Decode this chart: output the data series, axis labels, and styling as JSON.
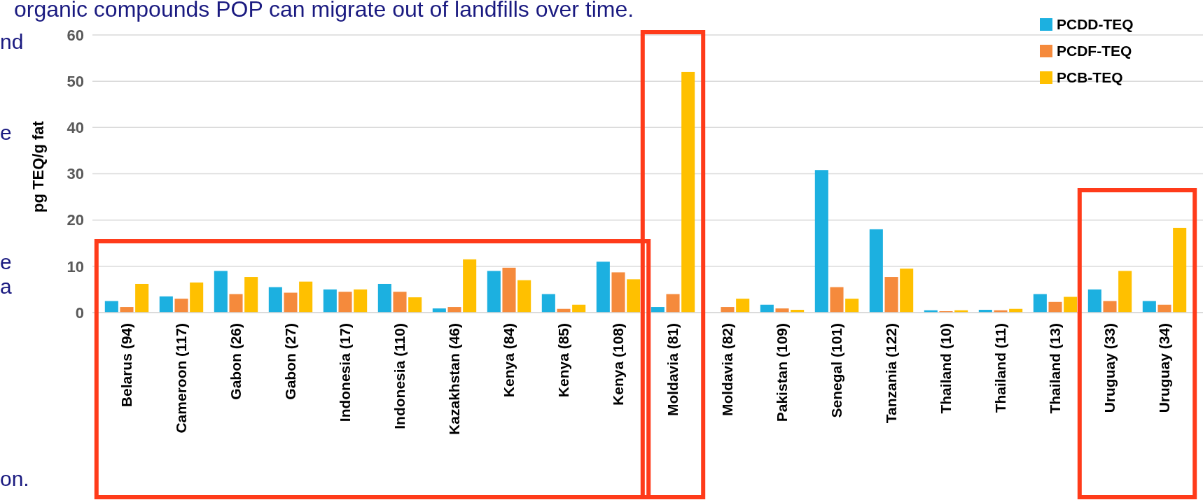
{
  "chart_data": {
    "type": "bar",
    "ylabel": "pg TEQ/g fat",
    "categories": [
      "Belarus (94)",
      "Cameroon (117)",
      "Gabon (26)",
      "Gabon (27)",
      "Indonesia (17)",
      "Indonesia (110)",
      "Kazakhstan (46)",
      "Kenya (84)",
      "Kenya (85)",
      "Kenya (108)",
      "Moldavia (81)",
      "Moldavia (82)",
      "Pakistan (109)",
      "Senegal (101)",
      "Tanzania (122)",
      "Thailand (10)",
      "Thailand (11)",
      "Thailand (13)",
      "Uruguay (33)",
      "Uruguay (34)"
    ],
    "series": [
      {
        "name": "PCDD-TEQ",
        "color": "#1cb0e0",
        "values": [
          2.5,
          3.5,
          9,
          5.5,
          5,
          6.2,
          0.9,
          9,
          4,
          11,
          1.2,
          0,
          1.7,
          30.8,
          18,
          0.5,
          0.6,
          4,
          5,
          2.5
        ]
      },
      {
        "name": "PCDF-TEQ",
        "color": "#f58a3c",
        "values": [
          1.2,
          3,
          4,
          4.3,
          4.5,
          4.5,
          1.2,
          9.7,
          0.8,
          8.7,
          4,
          1.2,
          0.9,
          5.5,
          7.7,
          0.3,
          0.5,
          2.3,
          2.5,
          1.7
        ]
      },
      {
        "name": "PCB-TEQ",
        "color": "#ffc000",
        "values": [
          6.2,
          6.5,
          7.7,
          6.7,
          5,
          3.3,
          11.5,
          7,
          1.7,
          7.2,
          52,
          3,
          0.6,
          3,
          9.5,
          0.5,
          0.8,
          3.4,
          9,
          18.3
        ]
      }
    ],
    "ylim": [
      0,
      60
    ],
    "yticks": [
      0,
      10,
      20,
      30,
      40,
      50,
      60
    ],
    "grid": "y",
    "legend": "top right",
    "annotations": [
      "organic compounds POP can migrate out of landfills over time.",
      "nd",
      "e",
      "e",
      "a",
      "on."
    ]
  }
}
